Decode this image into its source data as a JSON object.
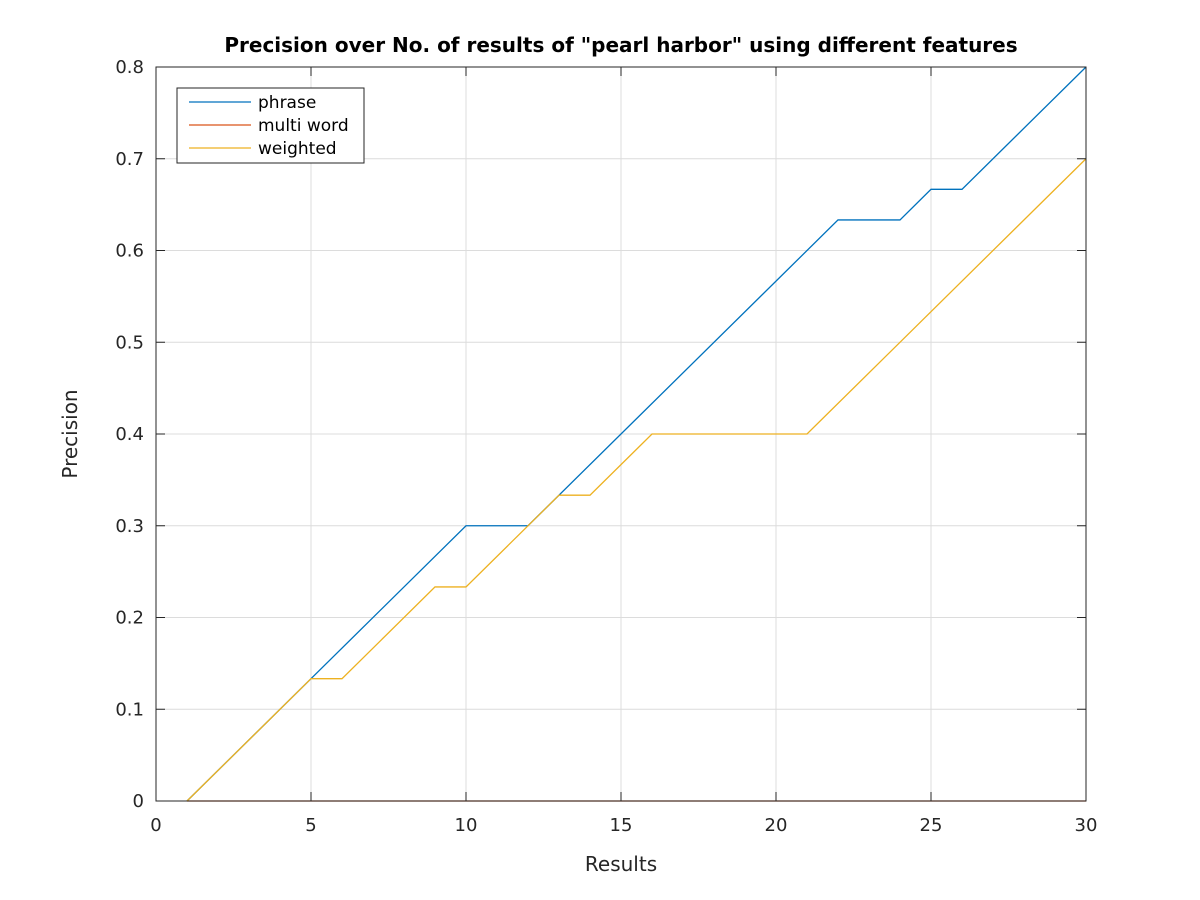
{
  "chart_data": {
    "type": "line",
    "title": "Precision over No. of results of \"pearl harbor\" using different features",
    "xlabel": "Results",
    "ylabel": "Precision",
    "xlim": [
      0,
      30
    ],
    "ylim": [
      0,
      0.8
    ],
    "xticks": [
      0,
      5,
      10,
      15,
      20,
      25,
      30
    ],
    "yticks": [
      0,
      0.1,
      0.2,
      0.3,
      0.4,
      0.5,
      0.6,
      0.7,
      0.8
    ],
    "xtick_labels": [
      "0",
      "5",
      "10",
      "15",
      "20",
      "25",
      "30"
    ],
    "ytick_labels": [
      "0",
      "0.1",
      "0.2",
      "0.3",
      "0.4",
      "0.5",
      "0.6",
      "0.7",
      "0.8"
    ],
    "grid": true,
    "legend_position": "top-left",
    "series": [
      {
        "name": "phrase",
        "color": "#0072BD",
        "x": [
          1,
          5,
          10,
          12,
          22,
          24,
          25,
          26,
          30
        ],
        "y": [
          0,
          0.1333,
          0.3,
          0.3,
          0.6333,
          0.6333,
          0.6667,
          0.6667,
          0.8
        ]
      },
      {
        "name": "multi word",
        "color": "#D95319",
        "x": [
          1,
          30
        ],
        "y": [
          0,
          0
        ]
      },
      {
        "name": "weighted",
        "color": "#EDB120",
        "x": [
          1,
          5,
          6,
          9,
          10,
          13,
          14,
          16,
          21,
          30
        ],
        "y": [
          0,
          0.1333,
          0.1333,
          0.2333,
          0.2333,
          0.3333,
          0.3333,
          0.4,
          0.4,
          0.7
        ]
      }
    ]
  }
}
